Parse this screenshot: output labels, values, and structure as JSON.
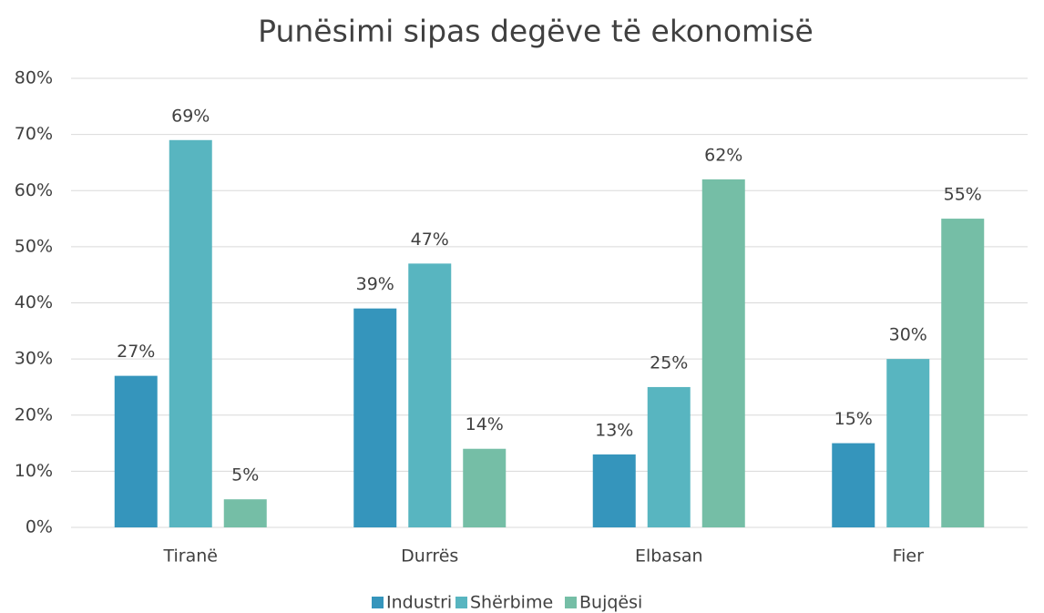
{
  "chart_data": {
    "type": "bar",
    "title": "Punësimi sipas degëve të ekonomisë",
    "categories": [
      "Tiranë",
      "Durrës",
      "Elbasan",
      "Fier"
    ],
    "series": [
      {
        "name": "Industri",
        "color": "#3595bc",
        "values": [
          27,
          39,
          13,
          15
        ],
        "value_labels": [
          "27%",
          "39%",
          "13%",
          "15%"
        ]
      },
      {
        "name": "Shërbime",
        "color": "#58b5c0",
        "values": [
          69,
          47,
          25,
          30
        ],
        "value_labels": [
          "69%",
          "47%",
          "25%",
          "30%"
        ]
      },
      {
        "name": "Bujqësi",
        "color": "#75bea6",
        "values": [
          5,
          14,
          62,
          55
        ],
        "value_labels": [
          "5%",
          "14%",
          "62%",
          "55%"
        ]
      }
    ],
    "ylim": [
      0,
      80
    ],
    "yticks": [
      {
        "value": 0,
        "label": "0%"
      },
      {
        "value": 10,
        "label": "10%"
      },
      {
        "value": 20,
        "label": "20%"
      },
      {
        "value": 30,
        "label": "30%"
      },
      {
        "value": 40,
        "label": "40%"
      },
      {
        "value": 50,
        "label": "50%"
      },
      {
        "value": 60,
        "label": "60%"
      },
      {
        "value": 70,
        "label": "70%"
      },
      {
        "value": 80,
        "label": "80%"
      }
    ],
    "grid": true,
    "legend": "bottom"
  }
}
